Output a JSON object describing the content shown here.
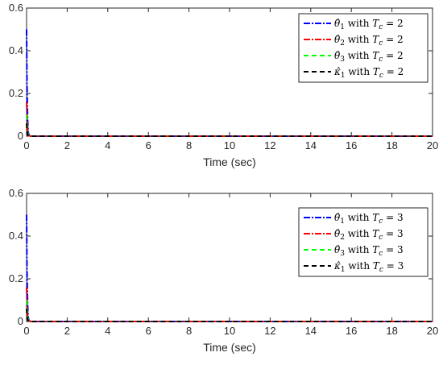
{
  "chart_data": [
    {
      "type": "line",
      "xlabel": "Time (sec)",
      "ylabel": "",
      "xlim": [
        0,
        20
      ],
      "ylim": [
        0,
        0.6
      ],
      "xticks": [
        "0",
        "2",
        "4",
        "6",
        "8",
        "10",
        "12",
        "14",
        "16",
        "18",
        "20"
      ],
      "yticks": [
        "0",
        "0.2",
        "0.4",
        "0.6"
      ],
      "grid": false,
      "legend_position": "top-right",
      "series": [
        {
          "name": "θ̂₁ with Tc = 2",
          "legend_math": "θ̂",
          "legend_sub": "1",
          "legend_tail": " with ",
          "legend_tc": "T",
          "legend_tc_sub": "c",
          "legend_eq": " = 2",
          "color": "#0000ff",
          "dash": "8 2 2 2",
          "x": [
            0,
            0.02,
            0.05,
            0.08,
            0.12,
            0.2,
            20
          ],
          "y": [
            0.5,
            0.25,
            0.08,
            0.02,
            0.004,
            0,
            0
          ]
        },
        {
          "name": "θ̂₂ with Tc = 2",
          "legend_math": "θ̂",
          "legend_sub": "2",
          "legend_tail": " with ",
          "legend_tc": "T",
          "legend_tc_sub": "c",
          "legend_eq": " = 2",
          "color": "#ff0000",
          "dash": "8 2 2 2",
          "x": [
            0,
            0.02,
            0.05,
            0.08,
            0.12,
            0.2,
            20
          ],
          "y": [
            0.16,
            0.09,
            0.03,
            0.01,
            0.002,
            0,
            0
          ]
        },
        {
          "name": "θ̂₃ with Tc = 2",
          "legend_math": "θ̂",
          "legend_sub": "3",
          "legend_tail": " with ",
          "legend_tc": "T",
          "legend_tc_sub": "c",
          "legend_eq": " = 2",
          "color": "#00ff00",
          "dash": "6 4",
          "x": [
            0,
            0.02,
            0.05,
            0.08,
            0.12,
            0.2,
            20
          ],
          "y": [
            0.1,
            0.055,
            0.02,
            0.006,
            0.001,
            0,
            0
          ]
        },
        {
          "name": "κ̂₁ with Tc = 2",
          "legend_math": "κ̂",
          "legend_sub": "1",
          "legend_tail": " with ",
          "legend_tc": "T",
          "legend_tc_sub": "c",
          "legend_eq": " = 2",
          "color": "#000000",
          "dash": "6 4",
          "x": [
            0,
            0.02,
            0.05,
            0.08,
            0.12,
            0.2,
            20
          ],
          "y": [
            0.06,
            0.03,
            0.01,
            0.003,
            0.001,
            0,
            0
          ]
        }
      ]
    },
    {
      "type": "line",
      "xlabel": "Time (sec)",
      "ylabel": "",
      "xlim": [
        0,
        20
      ],
      "ylim": [
        0,
        0.6
      ],
      "xticks": [
        "0",
        "2",
        "4",
        "6",
        "8",
        "10",
        "12",
        "14",
        "16",
        "18",
        "20"
      ],
      "yticks": [
        "0",
        "0.2",
        "0.4",
        "0.6"
      ],
      "grid": false,
      "legend_position": "top-right",
      "series": [
        {
          "name": "θ̂₁ with Tc = 3",
          "legend_math": "θ̂",
          "legend_sub": "1",
          "legend_tail": " with ",
          "legend_tc": "T",
          "legend_tc_sub": "c",
          "legend_eq": " = 3",
          "color": "#0000ff",
          "dash": "8 2 2 2",
          "x": [
            0,
            0.02,
            0.05,
            0.08,
            0.12,
            0.2,
            20
          ],
          "y": [
            0.5,
            0.25,
            0.08,
            0.02,
            0.004,
            0,
            0
          ]
        },
        {
          "name": "θ̂₂ with Tc = 3",
          "legend_math": "θ̂",
          "legend_sub": "2",
          "legend_tail": " with ",
          "legend_tc": "T",
          "legend_tc_sub": "c",
          "legend_eq": " = 3",
          "color": "#ff0000",
          "dash": "8 2 2 2",
          "x": [
            0,
            0.02,
            0.05,
            0.08,
            0.12,
            0.2,
            20
          ],
          "y": [
            0.16,
            0.09,
            0.03,
            0.01,
            0.002,
            0,
            0
          ]
        },
        {
          "name": "θ̂₃ with Tc = 3",
          "legend_math": "θ̂",
          "legend_sub": "3",
          "legend_tail": " with ",
          "legend_tc": "T",
          "legend_tc_sub": "c",
          "legend_eq": " = 3",
          "color": "#00ff00",
          "dash": "6 4",
          "x": [
            0,
            0.02,
            0.05,
            0.08,
            0.12,
            0.2,
            20
          ],
          "y": [
            0.1,
            0.055,
            0.02,
            0.006,
            0.001,
            0,
            0
          ]
        },
        {
          "name": "κ̂₁ with Tc = 3",
          "legend_math": "κ̂",
          "legend_sub": "1",
          "legend_tail": " with ",
          "legend_tc": "T",
          "legend_tc_sub": "c",
          "legend_eq": " = 3",
          "color": "#000000",
          "dash": "6 4",
          "x": [
            0,
            0.02,
            0.05,
            0.08,
            0.12,
            0.2,
            20
          ],
          "y": [
            0.06,
            0.03,
            0.01,
            0.003,
            0.001,
            0,
            0
          ]
        }
      ]
    }
  ]
}
